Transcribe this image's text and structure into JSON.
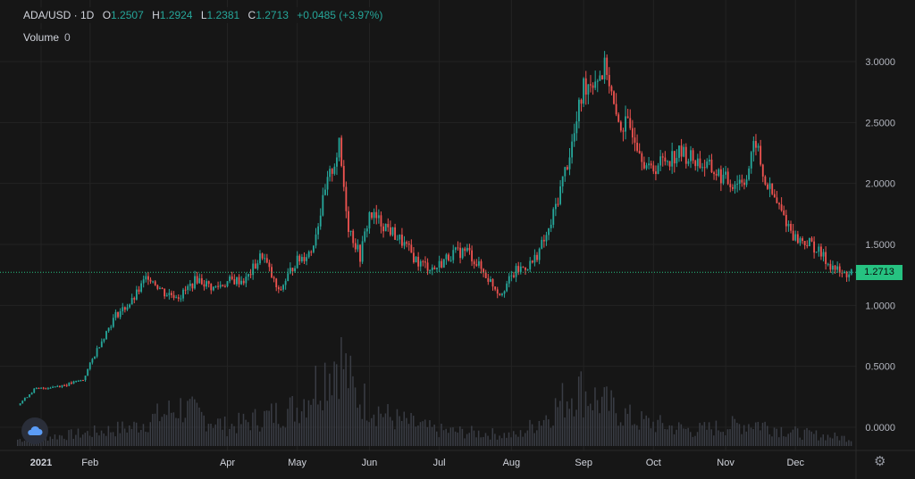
{
  "legend": {
    "symbol": "ADA/USD · 1D",
    "open_label": "O",
    "open": "1.2507",
    "high_label": "H",
    "high": "1.2924",
    "low_label": "L",
    "low": "1.2381",
    "close_label": "C",
    "close": "1.2713",
    "change": "+0.0485 (+3.97%)"
  },
  "volume": {
    "label": "Volume",
    "value": "0"
  },
  "price_tag": "1.2713",
  "colors": {
    "up": "#26a69a",
    "down": "#ef5350",
    "last_price": "#26c281",
    "volume": "#3a3d45"
  },
  "icons": {
    "logo": "tradingview-cloud-icon",
    "settings": "gear-icon"
  },
  "chart_data": {
    "type": "candlestick",
    "title": "ADA/USD",
    "xlabel": "",
    "ylabel": "",
    "ylim": [
      -0.15,
      3.3
    ],
    "y_ticks": [
      "0.0000",
      "0.5000",
      "1.0000",
      "1.5000",
      "2.0000",
      "2.5000",
      "3.0000"
    ],
    "x_tick_labels": [
      "2021",
      "Feb",
      "Apr",
      "May",
      "Jun",
      "Jul",
      "Aug",
      "Sep",
      "Oct",
      "Nov",
      "Dec"
    ],
    "x_tick_days": [
      0,
      31,
      90,
      120,
      151,
      181,
      212,
      243,
      273,
      304,
      334
    ],
    "last_price": 1.2713,
    "close_series_weekly": [
      {
        "day": 0,
        "close": 0.18
      },
      {
        "day": 7,
        "close": 0.31
      },
      {
        "day": 14,
        "close": 0.33
      },
      {
        "day": 21,
        "close": 0.35
      },
      {
        "day": 28,
        "close": 0.39
      },
      {
        "day": 35,
        "close": 0.68
      },
      {
        "day": 42,
        "close": 0.92
      },
      {
        "day": 49,
        "close": 1.03
      },
      {
        "day": 56,
        "close": 1.25
      },
      {
        "day": 63,
        "close": 1.1
      },
      {
        "day": 70,
        "close": 1.08
      },
      {
        "day": 77,
        "close": 1.22
      },
      {
        "day": 84,
        "close": 1.14
      },
      {
        "day": 91,
        "close": 1.2
      },
      {
        "day": 98,
        "close": 1.21
      },
      {
        "day": 105,
        "close": 1.42
      },
      {
        "day": 112,
        "close": 1.1
      },
      {
        "day": 119,
        "close": 1.35
      },
      {
        "day": 126,
        "close": 1.45
      },
      {
        "day": 133,
        "close": 2.0
      },
      {
        "day": 138,
        "close": 2.3
      },
      {
        "day": 142,
        "close": 1.65
      },
      {
        "day": 147,
        "close": 1.4
      },
      {
        "day": 151,
        "close": 1.75
      },
      {
        "day": 158,
        "close": 1.65
      },
      {
        "day": 165,
        "close": 1.52
      },
      {
        "day": 172,
        "close": 1.35
      },
      {
        "day": 179,
        "close": 1.3
      },
      {
        "day": 186,
        "close": 1.42
      },
      {
        "day": 193,
        "close": 1.45
      },
      {
        "day": 200,
        "close": 1.27
      },
      {
        "day": 207,
        "close": 1.1
      },
      {
        "day": 214,
        "close": 1.28
      },
      {
        "day": 221,
        "close": 1.35
      },
      {
        "day": 228,
        "close": 1.6
      },
      {
        "day": 235,
        "close": 2.1
      },
      {
        "day": 239,
        "close": 2.4
      },
      {
        "day": 243,
        "close": 2.8
      },
      {
        "day": 250,
        "close": 2.9
      },
      {
        "day": 253,
        "close": 2.95
      },
      {
        "day": 257,
        "close": 2.5
      },
      {
        "day": 264,
        "close": 2.45
      },
      {
        "day": 271,
        "close": 2.1
      },
      {
        "day": 278,
        "close": 2.2
      },
      {
        "day": 285,
        "close": 2.25
      },
      {
        "day": 292,
        "close": 2.18
      },
      {
        "day": 299,
        "close": 2.1
      },
      {
        "day": 306,
        "close": 2.0
      },
      {
        "day": 313,
        "close": 2.05
      },
      {
        "day": 317,
        "close": 2.35
      },
      {
        "day": 320,
        "close": 2.05
      },
      {
        "day": 327,
        "close": 1.8
      },
      {
        "day": 334,
        "close": 1.55
      },
      {
        "day": 341,
        "close": 1.5
      },
      {
        "day": 348,
        "close": 1.35
      },
      {
        "day": 354,
        "close": 1.25
      },
      {
        "day": 358,
        "close": 1.27
      }
    ],
    "volume_series_weekly": [
      {
        "day": 0,
        "v": 0.05
      },
      {
        "day": 30,
        "v": 0.1
      },
      {
        "day": 50,
        "v": 0.15
      },
      {
        "day": 63,
        "v": 0.25
      },
      {
        "day": 70,
        "v": 0.3
      },
      {
        "day": 90,
        "v": 0.15
      },
      {
        "day": 105,
        "v": 0.22
      },
      {
        "day": 120,
        "v": 0.3
      },
      {
        "day": 133,
        "v": 0.6
      },
      {
        "day": 138,
        "v": 0.72
      },
      {
        "day": 145,
        "v": 0.4
      },
      {
        "day": 160,
        "v": 0.22
      },
      {
        "day": 180,
        "v": 0.12
      },
      {
        "day": 200,
        "v": 0.1
      },
      {
        "day": 215,
        "v": 0.08
      },
      {
        "day": 228,
        "v": 0.25
      },
      {
        "day": 240,
        "v": 0.45
      },
      {
        "day": 250,
        "v": 0.35
      },
      {
        "day": 265,
        "v": 0.2
      },
      {
        "day": 290,
        "v": 0.12
      },
      {
        "day": 317,
        "v": 0.18
      },
      {
        "day": 335,
        "v": 0.1
      },
      {
        "day": 358,
        "v": 0.06
      }
    ]
  }
}
